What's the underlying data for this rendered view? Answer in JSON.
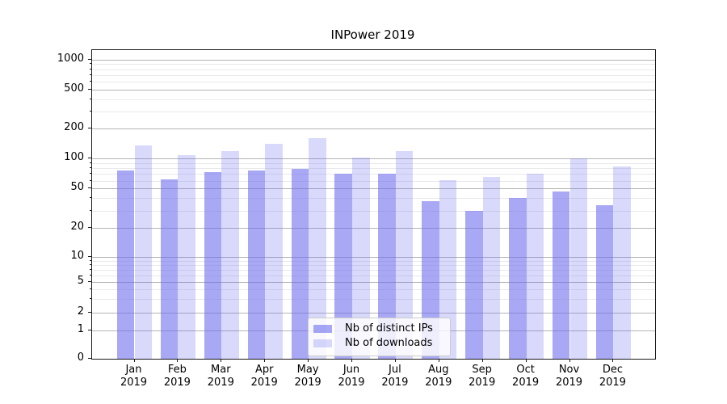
{
  "figure": {
    "title": "INPower 2019"
  },
  "chart_data": {
    "type": "bar",
    "title": "INPower 2019",
    "categories": [
      "Jan",
      "Feb",
      "Mar",
      "Apr",
      "May",
      "Jun",
      "Jul",
      "Aug",
      "Sep",
      "Oct",
      "Nov",
      "Dec"
    ],
    "category_year": "2019",
    "series": [
      {
        "key": "distinct-ips",
        "name": "Nb of distinct IPs",
        "color": "rgba(102,102,238,0.57)",
        "values": [
          76,
          62,
          73,
          76,
          79,
          70,
          71,
          37,
          30,
          40,
          47,
          34
        ]
      },
      {
        "key": "downloads",
        "name": "Nb of downloads",
        "color": "rgba(102,102,238,0.25)",
        "values": [
          136,
          108,
          119,
          140,
          160,
          102,
          120,
          61,
          66,
          70,
          100,
          83
        ]
      }
    ],
    "yscale": "symlog",
    "ylim": [
      0,
      1500
    ],
    "y_ticks": [
      1000,
      500,
      200,
      100,
      50,
      20,
      10,
      5,
      2,
      1,
      0
    ],
    "y_minor_ticks": [
      3,
      4,
      6,
      7,
      8,
      9,
      30,
      40,
      60,
      70,
      80,
      90,
      300,
      400,
      600,
      700,
      800,
      900
    ],
    "xlabel": "",
    "ylabel": "",
    "grid": true,
    "legend_position": "lower center"
  },
  "colors": {
    "bar_base": "#6666ee",
    "grid_major": "#b4b4b4",
    "grid_minor": "#e9e9ec",
    "axis": "#1a1a1a",
    "background": "#ffffff"
  }
}
